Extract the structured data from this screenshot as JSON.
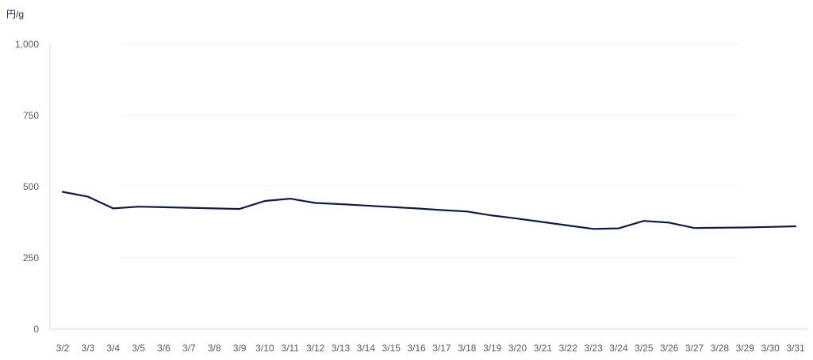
{
  "chart_data": {
    "type": "line",
    "ylabel": "円/g",
    "ylim": [
      0,
      1000
    ],
    "yticks": [
      0,
      250,
      500,
      750,
      "1,000"
    ],
    "grid": true,
    "legend": "none",
    "line_color": "#0f1a45",
    "categories": [
      "3/2",
      "3/3",
      "3/4",
      "3/5",
      "3/6",
      "3/7",
      "3/8",
      "3/9",
      "3/10",
      "3/11",
      "3/12",
      "3/13",
      "3/14",
      "3/15",
      "3/16",
      "3/17",
      "3/18",
      "3/19",
      "3/20",
      "3/21",
      "3/22",
      "3/23",
      "3/24",
      "3/25",
      "3/26",
      "3/27",
      "3/28",
      "3/29",
      "3/30",
      "3/31"
    ],
    "series": [
      {
        "values": [
          482,
          465,
          424,
          430,
          428,
          426,
          424,
          422,
          450,
          458,
          443,
          439,
          434,
          429,
          424,
          418,
          413,
          399,
          388,
          376,
          364,
          352,
          354,
          380,
          374,
          355,
          356,
          357,
          359,
          361
        ]
      }
    ]
  }
}
